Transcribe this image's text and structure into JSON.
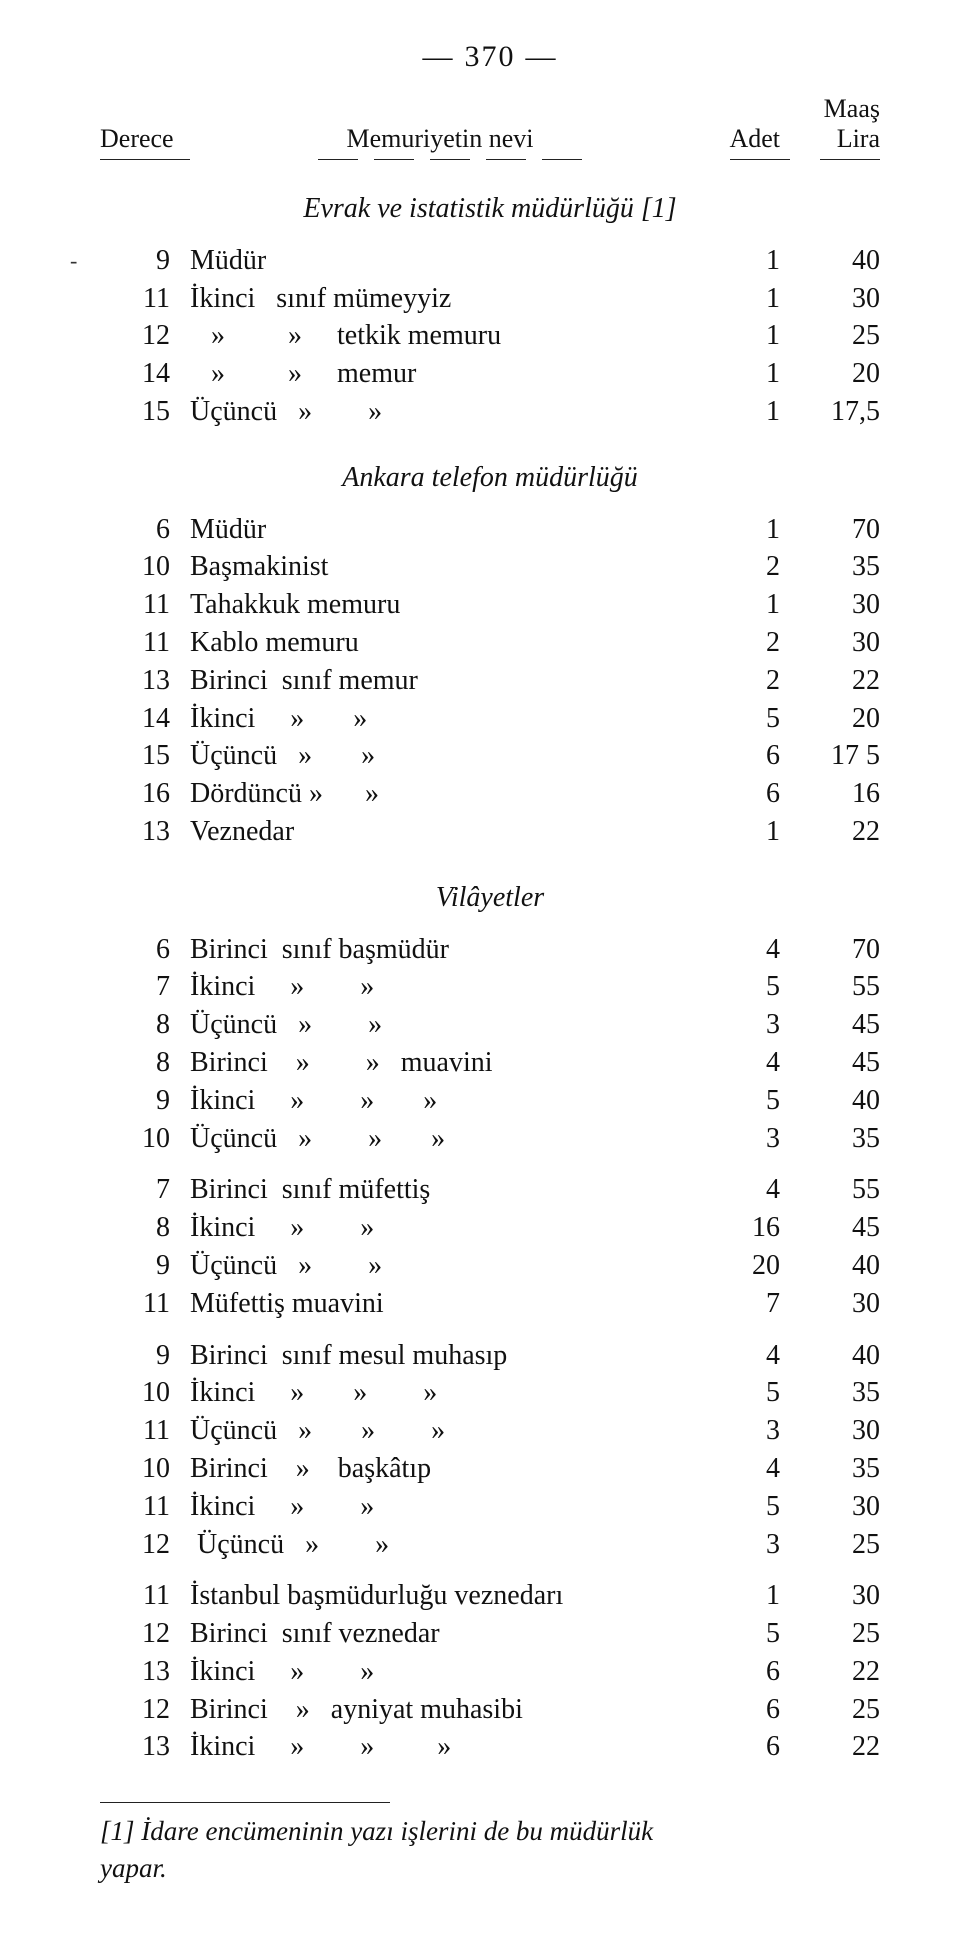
{
  "page_number": "370",
  "header": {
    "derece": "Derece",
    "nevi": "Memuriyetin nevi",
    "adet": "Adet",
    "maas_top": "Maaş",
    "maas": "Lira"
  },
  "sections": [
    {
      "title": "Evrak ve istatistik müdürlüğü [1]",
      "rows": [
        {
          "derece": "9",
          "desc": "Müdür",
          "adet": "1",
          "maas": "40"
        },
        {
          "derece": "11",
          "desc": "İkinci   sınıf mümeyyiz",
          "adet": "1",
          "maas": "30"
        },
        {
          "derece": "12",
          "desc": "   »         »     tetkik memuru",
          "adet": "1",
          "maas": "25"
        },
        {
          "derece": "14",
          "desc": "   »         »     memur",
          "adet": "1",
          "maas": "20"
        },
        {
          "derece": "15",
          "desc": "Üçüncü   »        »",
          "adet": "1",
          "maas": "17,5"
        }
      ]
    },
    {
      "title": "Ankara telefon müdürlüğü",
      "rows": [
        {
          "derece": "6",
          "desc": "Müdür",
          "adet": "1",
          "maas": "70"
        },
        {
          "derece": "10",
          "desc": "Başmakinist",
          "adet": "2",
          "maas": "35"
        },
        {
          "derece": "11",
          "desc": "Tahakkuk memuru",
          "adet": "1",
          "maas": "30"
        },
        {
          "derece": "11",
          "desc": "Kablo memuru",
          "adet": "2",
          "maas": "30"
        },
        {
          "derece": "13",
          "desc": "Birinci  sınıf memur",
          "adet": "2",
          "maas": "22"
        },
        {
          "derece": "14",
          "desc": "İkinci     »       »",
          "adet": "5",
          "maas": "20"
        },
        {
          "derece": "15",
          "desc": "Üçüncü   »       »",
          "adet": "6",
          "maas": "17 5"
        },
        {
          "derece": "16",
          "desc": "Dördüncü »      »",
          "adet": "6",
          "maas": "16"
        },
        {
          "derece": "13",
          "desc": "Veznedar",
          "adet": "1",
          "maas": "22"
        }
      ]
    },
    {
      "title": "Vilâyetler",
      "rows": [
        {
          "derece": "6",
          "desc": "Birinci  sınıf başmüdür",
          "adet": "4",
          "maas": "70"
        },
        {
          "derece": "7",
          "desc": "İkinci     »        »",
          "adet": "5",
          "maas": "55"
        },
        {
          "derece": "8",
          "desc": "Üçüncü   »        »",
          "adet": "3",
          "maas": "45"
        },
        {
          "derece": "8",
          "desc": "Birinci    »        »   muavini",
          "adet": "4",
          "maas": "45"
        },
        {
          "derece": "9",
          "desc": "İkinci     »        »       »",
          "adet": "5",
          "maas": "40"
        },
        {
          "derece": "10",
          "desc": "Üçüncü   »        »       »",
          "adet": "3",
          "maas": "35"
        }
      ]
    },
    {
      "title": "",
      "rows": [
        {
          "derece": "7",
          "desc": "Birinci  sınıf müfettiş",
          "adet": "4",
          "maas": "55"
        },
        {
          "derece": "8",
          "desc": "İkinci     »        »",
          "adet": "16",
          "maas": "45"
        },
        {
          "derece": "9",
          "desc": "Üçüncü   »        »",
          "adet": "20",
          "maas": "40"
        },
        {
          "derece": "11",
          "desc": "Müfettiş muavini",
          "adet": "7",
          "maas": "30"
        }
      ]
    },
    {
      "title": "",
      "rows": [
        {
          "derece": "9",
          "desc": "Birinci  sınıf mesul muhasıp",
          "adet": "4",
          "maas": "40"
        },
        {
          "derece": "10",
          "desc": "İkinci     »       »        »",
          "adet": "5",
          "maas": "35"
        },
        {
          "derece": "11",
          "desc": "Üçüncü   »       »        »",
          "adet": "3",
          "maas": "30"
        },
        {
          "derece": "10",
          "desc": "Birinci    »    başkâtıp",
          "adet": "4",
          "maas": "35"
        },
        {
          "derece": "11",
          "desc": "İkinci     »        »",
          "adet": "5",
          "maas": "30"
        },
        {
          "derece": "12",
          "desc": " Üçüncü   »        »",
          "adet": "3",
          "maas": "25"
        }
      ]
    },
    {
      "title": "",
      "rows": [
        {
          "derece": "11",
          "desc": "İstanbul başmüdurluğu veznedarı",
          "adet": "1",
          "maas": "30"
        },
        {
          "derece": "12",
          "desc": "Birinci  sınıf veznedar",
          "adet": "5",
          "maas": "25"
        },
        {
          "derece": "13",
          "desc": "İkinci     »        »",
          "adet": "6",
          "maas": "22"
        },
        {
          "derece": "12",
          "desc": "Birinci    »   ayniyat muhasibi",
          "adet": "6",
          "maas": "25"
        },
        {
          "derece": "13",
          "desc": "İkinci     »        »         »",
          "adet": "6",
          "maas": "22"
        }
      ]
    }
  ],
  "footnote": {
    "line1": "[1] İdare encümeninin  yazı işlerini de bu  müdürlük",
    "line2": "yapar."
  }
}
